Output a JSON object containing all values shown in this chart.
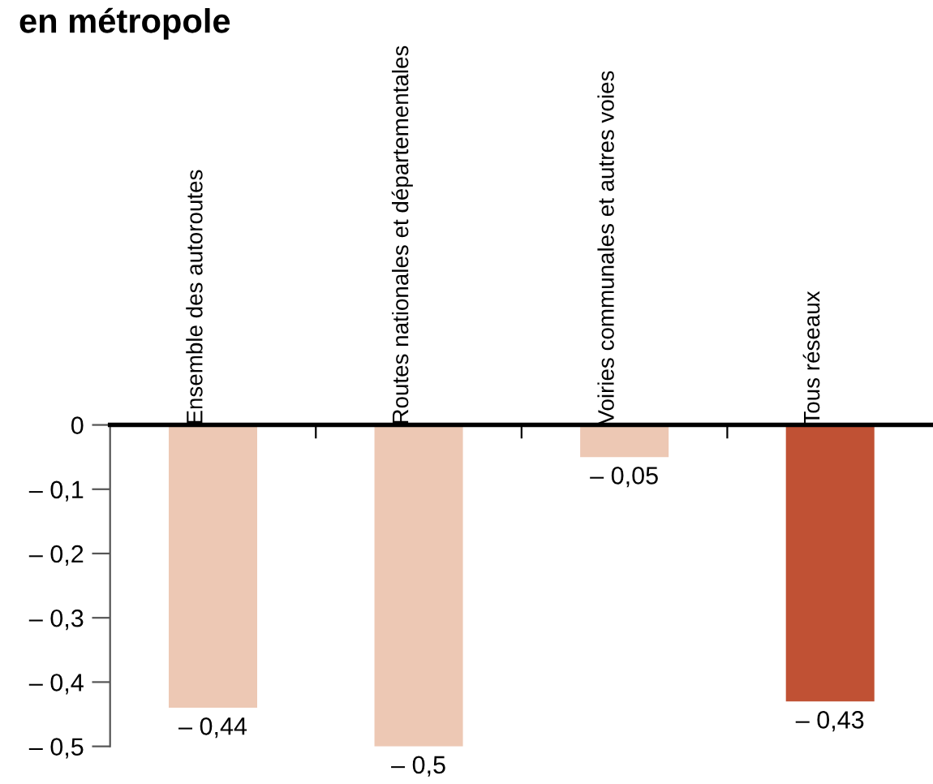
{
  "chart_data": {
    "type": "bar",
    "title": "en métropole",
    "categories": [
      "Ensemble des autoroutes",
      "Routes nationales et départementales",
      "Voiries communales et autres voies",
      "Tous réseaux"
    ],
    "values": [
      -0.44,
      -0.5,
      -0.05,
      -0.43
    ],
    "colors": [
      "#edc8b4",
      "#edc8b4",
      "#edc8b4",
      "#c05134"
    ],
    "value_labels": [
      "– 0,44",
      "– 0,5",
      "– 0,05",
      "– 0,43"
    ],
    "ylim": [
      -0.5,
      0
    ],
    "yticks": [
      0,
      {
        "value": -0.1,
        "label": "– 0,1"
      },
      {
        "value": -0.2,
        "label": "– 0,2"
      },
      {
        "value": -0.3,
        "label": "– 0,3"
      },
      {
        "value": -0.4,
        "label": "– 0,4"
      },
      {
        "value": -0.5,
        "label": "– 0,5"
      }
    ],
    "grid": false,
    "legend": false
  }
}
